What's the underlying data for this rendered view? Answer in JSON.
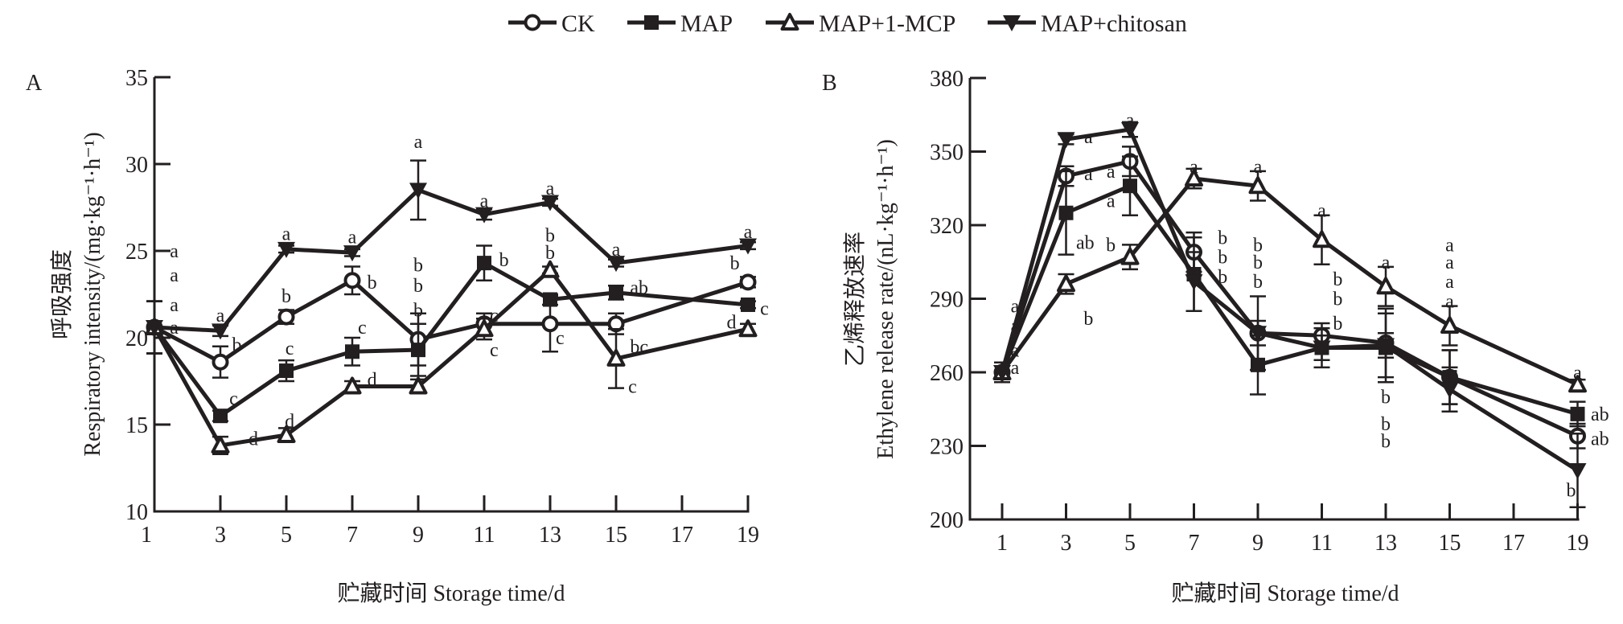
{
  "legend": {
    "items": [
      {
        "key": "CK",
        "label": "CK",
        "marker": "circle-open-icon"
      },
      {
        "key": "MAP",
        "label": "MAP",
        "marker": "square-filled-icon"
      },
      {
        "key": "MCP",
        "label": "MAP+1-MCP",
        "marker": "triangle-up-open-icon"
      },
      {
        "key": "CHI",
        "label": "MAP+chitosan",
        "marker": "triangle-down-filled-icon"
      }
    ],
    "placement": "top-center"
  },
  "chart_data": [
    {
      "type": "line",
      "panel": "A",
      "title": "",
      "xlabel": "贮藏时间 Storage time/d",
      "ylabel_cn": "呼吸强度",
      "ylabel_en": "Respiratory intensity/(mg·kg⁻¹·h⁻¹)",
      "x": [
        1,
        3,
        5,
        7,
        9,
        11,
        13,
        15,
        19
      ],
      "xticks": [
        "1",
        "3",
        "5",
        "7",
        "9",
        "11",
        "13",
        "15",
        "17",
        "19"
      ],
      "xlim": [
        1,
        19
      ],
      "yticks": [
        "10",
        "15",
        "20",
        "25",
        "30",
        "35"
      ],
      "ylim": [
        10,
        35
      ],
      "grid": false,
      "series": [
        {
          "key": "CK",
          "name": "CK",
          "values": [
            20.6,
            18.6,
            21.2,
            23.3,
            19.9,
            20.8,
            20.8,
            20.8,
            23.2
          ],
          "errors": [
            1.5,
            0.9,
            0.4,
            0.8,
            1.5,
            0.6,
            1.6,
            0.6,
            0.3
          ]
        },
        {
          "key": "MAP",
          "name": "MAP",
          "values": [
            20.6,
            15.5,
            18.1,
            19.2,
            19.3,
            24.3,
            22.2,
            22.6,
            21.9
          ],
          "errors": [
            1.5,
            0.3,
            0.6,
            0.8,
            1.5,
            1.0,
            0.3,
            0.4,
            0.2
          ]
        },
        {
          "key": "MCP",
          "name": "MAP+1-MCP",
          "values": [
            20.6,
            13.8,
            14.4,
            17.2,
            17.2,
            20.5,
            23.9,
            18.8,
            20.5
          ],
          "errors": [
            1.5,
            0.5,
            0.4,
            0.3,
            0.4,
            0.6,
            0.2,
            1.7,
            0.3
          ]
        },
        {
          "key": "CHI",
          "name": "MAP+chitosan",
          "values": [
            20.6,
            20.4,
            25.1,
            24.9,
            28.5,
            27.1,
            27.8,
            24.3,
            25.3
          ],
          "errors": [
            1.5,
            0.3,
            0.2,
            0.2,
            1.7,
            0.3,
            0.2,
            0.2,
            0.2
          ]
        }
      ],
      "annotations": [
        {
          "x": 1.6,
          "y": 25.0,
          "text": "a"
        },
        {
          "x": 1.6,
          "y": 23.6,
          "text": "a"
        },
        {
          "x": 1.6,
          "y": 21.9,
          "text": "a"
        },
        {
          "x": 1.6,
          "y": 20.6,
          "text": "a"
        },
        {
          "x": 3.0,
          "y": 21.3,
          "text": "a"
        },
        {
          "x": 3.5,
          "y": 19.6,
          "text": "b"
        },
        {
          "x": 3.4,
          "y": 16.5,
          "text": "c"
        },
        {
          "x": 4.0,
          "y": 14.2,
          "text": "d"
        },
        {
          "x": 5.0,
          "y": 26.0,
          "text": "a"
        },
        {
          "x": 5.0,
          "y": 22.4,
          "text": "b"
        },
        {
          "x": 5.1,
          "y": 19.4,
          "text": "c"
        },
        {
          "x": 5.1,
          "y": 15.2,
          "text": "d"
        },
        {
          "x": 7.0,
          "y": 25.8,
          "text": "a"
        },
        {
          "x": 7.6,
          "y": 23.2,
          "text": "b"
        },
        {
          "x": 7.3,
          "y": 20.6,
          "text": "c"
        },
        {
          "x": 7.6,
          "y": 17.6,
          "text": "d"
        },
        {
          "x": 9.0,
          "y": 31.3,
          "text": "a"
        },
        {
          "x": 9.0,
          "y": 24.2,
          "text": "b"
        },
        {
          "x": 9.0,
          "y": 23.0,
          "text": "b"
        },
        {
          "x": 9.0,
          "y": 21.6,
          "text": "b"
        },
        {
          "x": 11.0,
          "y": 27.9,
          "text": "a"
        },
        {
          "x": 11.6,
          "y": 24.5,
          "text": "b"
        },
        {
          "x": 11.3,
          "y": 21.3,
          "text": "c"
        },
        {
          "x": 11.3,
          "y": 19.3,
          "text": "c"
        },
        {
          "x": 13.0,
          "y": 28.6,
          "text": "a"
        },
        {
          "x": 13.0,
          "y": 25.9,
          "text": "b"
        },
        {
          "x": 13.0,
          "y": 24.9,
          "text": "b"
        },
        {
          "x": 13.3,
          "y": 20.0,
          "text": "c"
        },
        {
          "x": 15.0,
          "y": 25.1,
          "text": "a"
        },
        {
          "x": 15.7,
          "y": 22.9,
          "text": "ab"
        },
        {
          "x": 15.7,
          "y": 19.5,
          "text": "bc"
        },
        {
          "x": 15.5,
          "y": 17.2,
          "text": "c"
        },
        {
          "x": 18.6,
          "y": 24.3,
          "text": "b"
        },
        {
          "x": 19.5,
          "y": 21.7,
          "text": "c"
        },
        {
          "x": 18.5,
          "y": 20.9,
          "text": "d"
        },
        {
          "x": 19.0,
          "y": 26.1,
          "text": "a"
        }
      ]
    },
    {
      "type": "line",
      "panel": "B",
      "title": "",
      "xlabel": "贮藏时间 Storage time/d",
      "ylabel_cn": "乙烯释放速率",
      "ylabel_en": "Ethylene release rate/(nL·kg⁻¹·h⁻¹)",
      "x": [
        1,
        3,
        5,
        7,
        9,
        11,
        13,
        15,
        19
      ],
      "xticks": [
        "1",
        "3",
        "5",
        "7",
        "9",
        "11",
        "13",
        "15",
        "17",
        "19"
      ],
      "xlim": [
        0,
        19
      ],
      "yticks": [
        "200",
        "230",
        "260",
        "290",
        "320",
        "350",
        "380"
      ],
      "ylim": [
        200,
        380
      ],
      "grid": false,
      "series": [
        {
          "key": "CK",
          "name": "CK",
          "values": [
            260,
            340,
            346,
            309,
            276,
            275,
            272,
            258,
            234
          ],
          "errors": [
            4,
            4,
            6,
            8,
            15,
            5,
            14,
            11,
            5
          ]
        },
        {
          "key": "MAP",
          "name": "MAP",
          "values": [
            260,
            325,
            336,
            300,
            263,
            270,
            270,
            258,
            243
          ],
          "errors": [
            4,
            17,
            12,
            15,
            12,
            8,
            14,
            11,
            5
          ]
        },
        {
          "key": "MCP",
          "name": "MAP+1-MCP",
          "values": [
            260,
            296,
            307,
            339,
            336,
            314,
            295,
            279,
            255
          ],
          "errors": [
            4,
            4,
            5,
            4,
            6,
            10,
            8,
            8,
            2
          ]
        },
        {
          "key": "CHI",
          "name": "MAP+chitosan",
          "values": [
            260,
            355,
            359,
            297,
            276,
            270,
            271,
            253,
            220
          ],
          "errors": [
            4,
            2,
            3,
            12,
            5,
            5,
            5,
            9,
            15
          ]
        }
      ],
      "annotations": [
        {
          "x": 1.4,
          "y": 287,
          "text": "a"
        },
        {
          "x": 1.4,
          "y": 279,
          "text": "a"
        },
        {
          "x": 1.4,
          "y": 269,
          "text": "a"
        },
        {
          "x": 1.4,
          "y": 262,
          "text": "a"
        },
        {
          "x": 3.7,
          "y": 356,
          "text": "a"
        },
        {
          "x": 3.7,
          "y": 341,
          "text": "a"
        },
        {
          "x": 3.6,
          "y": 313,
          "text": "ab"
        },
        {
          "x": 3.7,
          "y": 282,
          "text": "b"
        },
        {
          "x": 5.0,
          "y": 363,
          "text": "a"
        },
        {
          "x": 4.4,
          "y": 342,
          "text": "a"
        },
        {
          "x": 4.4,
          "y": 330,
          "text": "a"
        },
        {
          "x": 4.4,
          "y": 312,
          "text": "b"
        },
        {
          "x": 7.0,
          "y": 344,
          "text": "a"
        },
        {
          "x": 7.9,
          "y": 315,
          "text": "b"
        },
        {
          "x": 7.9,
          "y": 307,
          "text": "b"
        },
        {
          "x": 7.9,
          "y": 299,
          "text": "b"
        },
        {
          "x": 9.0,
          "y": 344,
          "text": "a"
        },
        {
          "x": 9.0,
          "y": 312,
          "text": "b"
        },
        {
          "x": 9.0,
          "y": 305,
          "text": "b"
        },
        {
          "x": 9.0,
          "y": 297,
          "text": "b"
        },
        {
          "x": 11.0,
          "y": 326,
          "text": "a"
        },
        {
          "x": 11.5,
          "y": 298,
          "text": "b"
        },
        {
          "x": 11.5,
          "y": 290,
          "text": "b"
        },
        {
          "x": 11.5,
          "y": 280,
          "text": "b"
        },
        {
          "x": 13.0,
          "y": 305,
          "text": "a"
        },
        {
          "x": 13.0,
          "y": 250,
          "text": "b"
        },
        {
          "x": 13.0,
          "y": 239,
          "text": "b"
        },
        {
          "x": 13.0,
          "y": 232,
          "text": "b"
        },
        {
          "x": 15.0,
          "y": 312,
          "text": "a"
        },
        {
          "x": 15.0,
          "y": 305,
          "text": "a"
        },
        {
          "x": 15.0,
          "y": 297,
          "text": "a"
        },
        {
          "x": 15.0,
          "y": 289,
          "text": "a"
        },
        {
          "x": 19.0,
          "y": 260,
          "text": "a"
        },
        {
          "x": 19.7,
          "y": 243,
          "text": "ab"
        },
        {
          "x": 19.7,
          "y": 233,
          "text": "ab"
        },
        {
          "x": 18.8,
          "y": 212,
          "text": "b"
        }
      ]
    }
  ]
}
